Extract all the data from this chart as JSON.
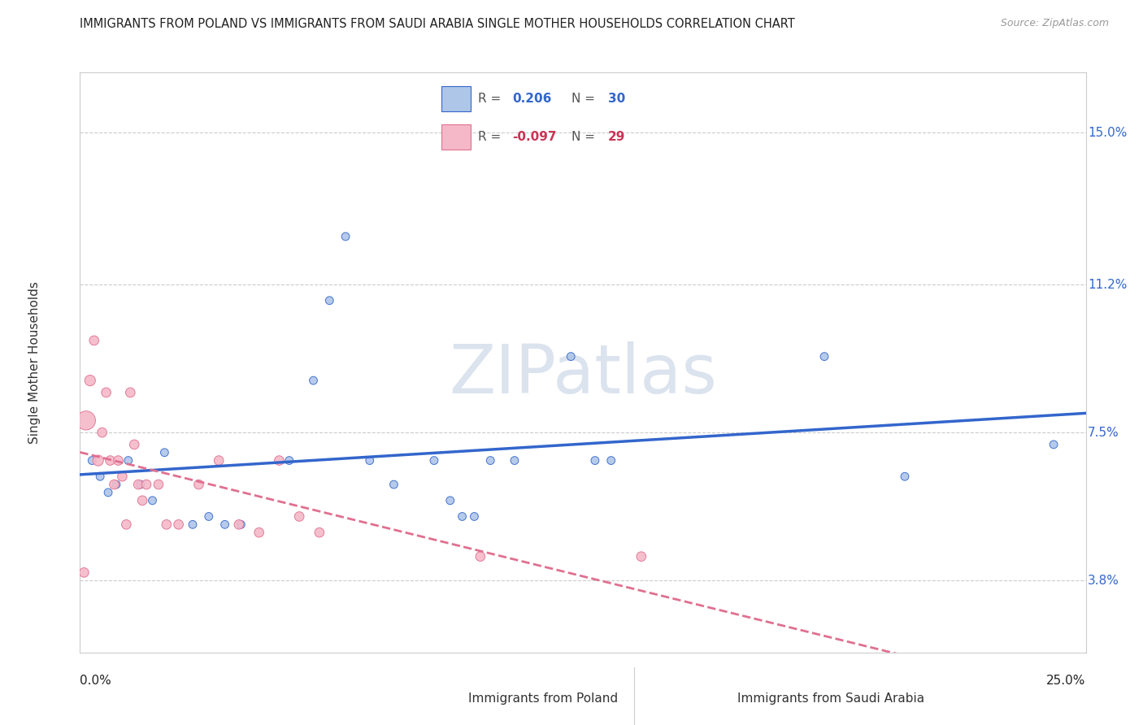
{
  "title": "IMMIGRANTS FROM POLAND VS IMMIGRANTS FROM SAUDI ARABIA SINGLE MOTHER HOUSEHOLDS CORRELATION CHART",
  "source": "Source: ZipAtlas.com",
  "ylabel": "Single Mother Households",
  "ytick_labels": [
    "3.8%",
    "7.5%",
    "11.2%",
    "15.0%"
  ],
  "ytick_values": [
    3.8,
    7.5,
    11.2,
    15.0
  ],
  "xlim": [
    0.0,
    25.0
  ],
  "ylim": [
    2.0,
    16.5
  ],
  "poland_color": "#aec6e8",
  "saudi_color": "#f5b8c8",
  "poland_line_color": "#3366cc",
  "saudi_line_color": "#e07090",
  "watermark_color": "#ccd8e8",
  "poland_scatter": [
    [
      0.3,
      6.8
    ],
    [
      0.5,
      6.4
    ],
    [
      0.7,
      6.0
    ],
    [
      0.9,
      6.2
    ],
    [
      1.2,
      6.8
    ],
    [
      1.5,
      6.2
    ],
    [
      1.8,
      5.8
    ],
    [
      2.1,
      7.0
    ],
    [
      2.8,
      5.2
    ],
    [
      3.2,
      5.4
    ],
    [
      3.6,
      5.2
    ],
    [
      4.0,
      5.2
    ],
    [
      5.2,
      6.8
    ],
    [
      5.8,
      8.8
    ],
    [
      6.2,
      10.8
    ],
    [
      6.6,
      12.4
    ],
    [
      7.2,
      6.8
    ],
    [
      7.8,
      6.2
    ],
    [
      8.8,
      6.8
    ],
    [
      9.2,
      5.8
    ],
    [
      9.5,
      5.4
    ],
    [
      9.8,
      5.4
    ],
    [
      10.2,
      6.8
    ],
    [
      10.8,
      6.8
    ],
    [
      12.2,
      9.4
    ],
    [
      12.8,
      6.8
    ],
    [
      13.2,
      6.8
    ],
    [
      18.5,
      9.4
    ],
    [
      20.5,
      6.4
    ],
    [
      24.2,
      7.2
    ]
  ],
  "saudi_scatter": [
    [
      0.15,
      7.8
    ],
    [
      0.25,
      8.8
    ],
    [
      0.35,
      9.8
    ],
    [
      0.45,
      6.8
    ],
    [
      0.55,
      7.5
    ],
    [
      0.65,
      8.5
    ],
    [
      0.75,
      6.8
    ],
    [
      0.85,
      6.2
    ],
    [
      0.95,
      6.8
    ],
    [
      1.05,
      6.4
    ],
    [
      1.15,
      5.2
    ],
    [
      1.25,
      8.5
    ],
    [
      1.35,
      7.2
    ],
    [
      1.45,
      6.2
    ],
    [
      1.55,
      5.8
    ],
    [
      1.65,
      6.2
    ],
    [
      1.95,
      6.2
    ],
    [
      2.15,
      5.2
    ],
    [
      2.45,
      5.2
    ],
    [
      2.95,
      6.2
    ],
    [
      3.45,
      6.8
    ],
    [
      3.95,
      5.2
    ],
    [
      4.45,
      5.0
    ],
    [
      4.95,
      6.8
    ],
    [
      5.45,
      5.4
    ],
    [
      5.95,
      5.0
    ],
    [
      9.95,
      4.4
    ],
    [
      13.95,
      4.4
    ],
    [
      0.1,
      4.0
    ]
  ],
  "poland_bubble_sizes": [
    50,
    50,
    50,
    50,
    50,
    50,
    50,
    50,
    50,
    50,
    50,
    50,
    50,
    50,
    50,
    50,
    50,
    50,
    50,
    50,
    50,
    50,
    50,
    50,
    50,
    50,
    50,
    50,
    50,
    50
  ],
  "saudi_bubble_sizes": [
    280,
    90,
    70,
    90,
    70,
    70,
    70,
    70,
    70,
    70,
    70,
    70,
    70,
    70,
    70,
    70,
    70,
    70,
    70,
    70,
    70,
    70,
    70,
    70,
    70,
    70,
    70,
    70,
    70
  ]
}
